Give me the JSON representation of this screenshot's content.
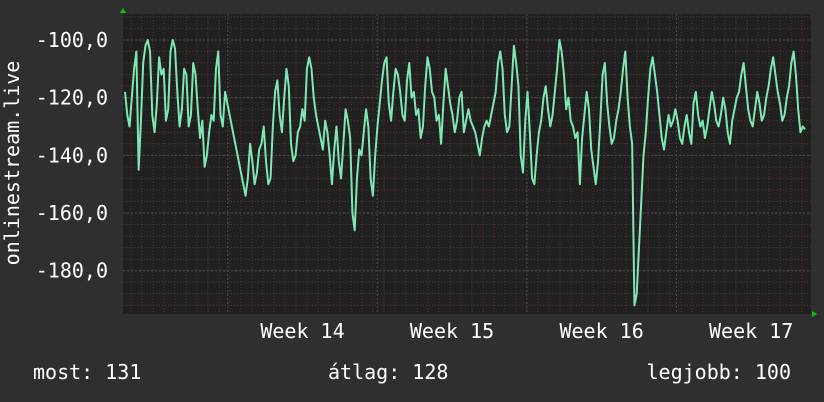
{
  "colors": {
    "background": "#2f2f2f",
    "plot_background": "#202020",
    "line": "#7de8b4",
    "grid_minor": "#5a2f2f",
    "grid_major": "#4a4a4a",
    "axis_arrow": "#00cc00"
  },
  "stats": {
    "current": "most: 131",
    "average": "átlag: 128",
    "best": "legjobb: 100"
  },
  "chart_data": {
    "type": "line",
    "ylabel": "onlinestream.live",
    "ylim": [
      -195,
      -91
    ],
    "yticks": [
      -100,
      -120,
      -140,
      -160,
      -180
    ],
    "ytick_labels": [
      "-100,0",
      "-120,0",
      "-140,0",
      "-160,0",
      "-180,0"
    ],
    "xlim": [
      13.3,
      17.9
    ],
    "xticks": [
      14,
      15,
      16,
      17
    ],
    "xtick_labels": [
      "Week 14",
      "Week 15",
      "Week 16",
      "Week 17"
    ],
    "grid": true,
    "series": [
      {
        "values": [
          -118,
          -126,
          -130,
          -120,
          -110,
          -104,
          -145,
          -128,
          -108,
          -102,
          -100,
          -104,
          -126,
          -132,
          -122,
          -106,
          -112,
          -110,
          -128,
          -124,
          -104,
          -100,
          -103,
          -118,
          -130,
          -124,
          -110,
          -112,
          -130,
          -126,
          -108,
          -112,
          -124,
          -134,
          -128,
          -144,
          -140,
          -132,
          -126,
          -128,
          -110,
          -104,
          -126,
          -130,
          -118,
          -122,
          -126,
          -130,
          -134,
          -138,
          -142,
          -146,
          -150,
          -154,
          -148,
          -136,
          -142,
          -150,
          -146,
          -138,
          -136,
          -130,
          -142,
          -150,
          -148,
          -130,
          -118,
          -114,
          -126,
          -132,
          -120,
          -110,
          -116,
          -136,
          -142,
          -140,
          -132,
          -130,
          -124,
          -128,
          -110,
          -106,
          -110,
          -120,
          -126,
          -130,
          -134,
          -138,
          -128,
          -132,
          -140,
          -150,
          -138,
          -130,
          -142,
          -148,
          -136,
          -124,
          -128,
          -134,
          -160,
          -166,
          -148,
          -138,
          -140,
          -132,
          -124,
          -130,
          -148,
          -154,
          -140,
          -130,
          -122,
          -114,
          -108,
          -106,
          -122,
          -128,
          -118,
          -110,
          -112,
          -118,
          -126,
          -128,
          -114,
          -108,
          -120,
          -118,
          -126,
          -124,
          -134,
          -130,
          -116,
          -106,
          -110,
          -118,
          -120,
          -128,
          -126,
          -136,
          -122,
          -110,
          -116,
          -122,
          -126,
          -132,
          -128,
          -120,
          -118,
          -132,
          -128,
          -124,
          -128,
          -130,
          -132,
          -136,
          -140,
          -134,
          -130,
          -128,
          -130,
          -126,
          -122,
          -118,
          -108,
          -104,
          -110,
          -126,
          -132,
          -130,
          -116,
          -102,
          -108,
          -116,
          -140,
          -146,
          -128,
          -118,
          -132,
          -148,
          -150,
          -140,
          -132,
          -128,
          -120,
          -116,
          -124,
          -130,
          -126,
          -118,
          -110,
          -100,
          -104,
          -112,
          -124,
          -120,
          -128,
          -130,
          -134,
          -132,
          -150,
          -134,
          -126,
          -118,
          -124,
          -138,
          -144,
          -150,
          -142,
          -128,
          -112,
          -108,
          -122,
          -130,
          -136,
          -134,
          -128,
          -124,
          -118,
          -110,
          -104,
          -120,
          -130,
          -136,
          -192,
          -188,
          -172,
          -156,
          -140,
          -132,
          -120,
          -110,
          -106,
          -112,
          -118,
          -126,
          -134,
          -138,
          -132,
          -126,
          -130,
          -128,
          -124,
          -128,
          -134,
          -136,
          -130,
          -126,
          -132,
          -136,
          -122,
          -118,
          -126,
          -130,
          -128,
          -134,
          -130,
          -124,
          -118,
          -122,
          -128,
          -130,
          -126,
          -120,
          -124,
          -132,
          -136,
          -128,
          -124,
          -120,
          -118,
          -112,
          -108,
          -116,
          -124,
          -128,
          -130,
          -124,
          -118,
          -122,
          -128,
          -126,
          -120,
          -116,
          -110,
          -106,
          -112,
          -118,
          -122,
          -128,
          -126,
          -120,
          -116,
          -108,
          -104,
          -112,
          -124,
          -132,
          -130,
          -131
        ]
      }
    ]
  }
}
